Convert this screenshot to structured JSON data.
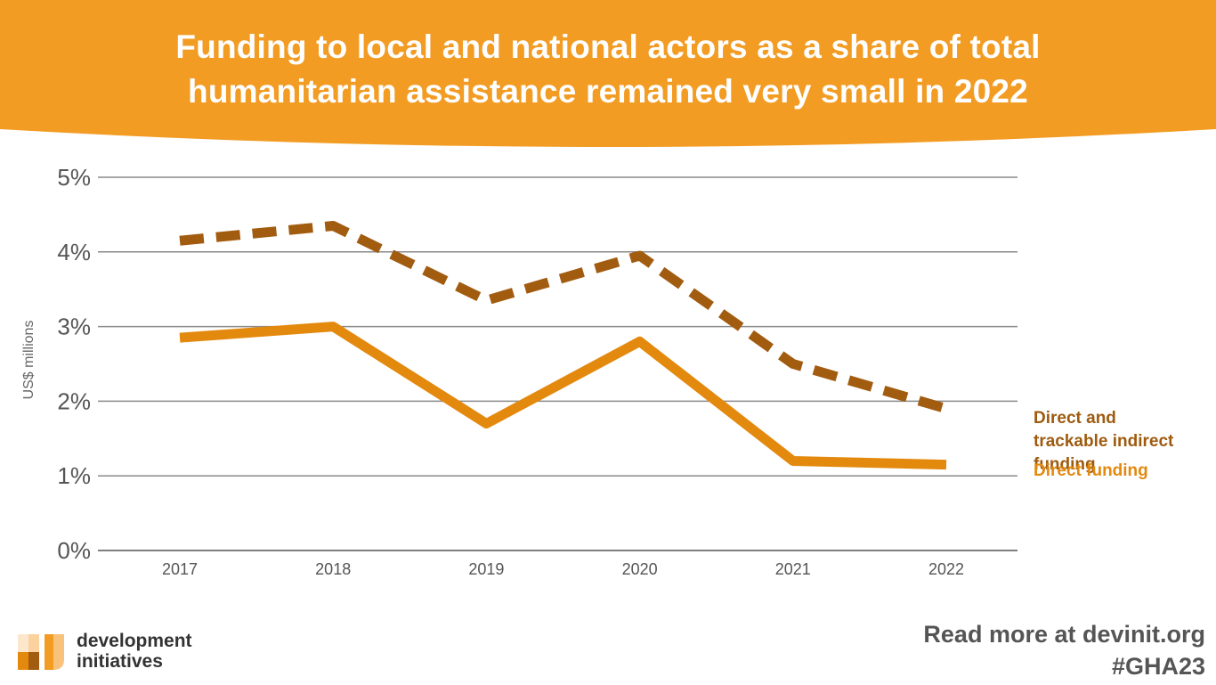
{
  "banner": {
    "title_line1": "Funding to local and national actors as a share of total",
    "title_line2": "humanitarian assistance remained very small in 2022",
    "color": "#f29c24"
  },
  "chart_data": {
    "type": "line",
    "ylabel": "US$ millions",
    "ylim": [
      0,
      5
    ],
    "y_ticks": [
      "0%",
      "1%",
      "2%",
      "3%",
      "4%",
      "5%"
    ],
    "grid": true,
    "legend_placement": "right",
    "categories": [
      "2017",
      "2018",
      "2019",
      "2020",
      "2021",
      "2022"
    ],
    "series": [
      {
        "name": "Direct and trackable indirect funding",
        "values": [
          4.15,
          4.35,
          3.35,
          3.95,
          2.5,
          1.9
        ],
        "color": "#a25c10",
        "style": "dashed"
      },
      {
        "name": "Direct funding",
        "values": [
          2.85,
          3.0,
          1.7,
          2.8,
          1.2,
          1.15
        ],
        "color": "#e3890e",
        "style": "solid"
      }
    ]
  },
  "legend": {
    "indirect_label": "Direct and trackable indirect funding",
    "direct_label": "Direct funding"
  },
  "logo": {
    "line1": "development",
    "line2": "initiatives",
    "icon": "development-initiatives-logo"
  },
  "footer": {
    "read_more": "Read more at devinit.org",
    "hashtag": "#GHA23"
  }
}
